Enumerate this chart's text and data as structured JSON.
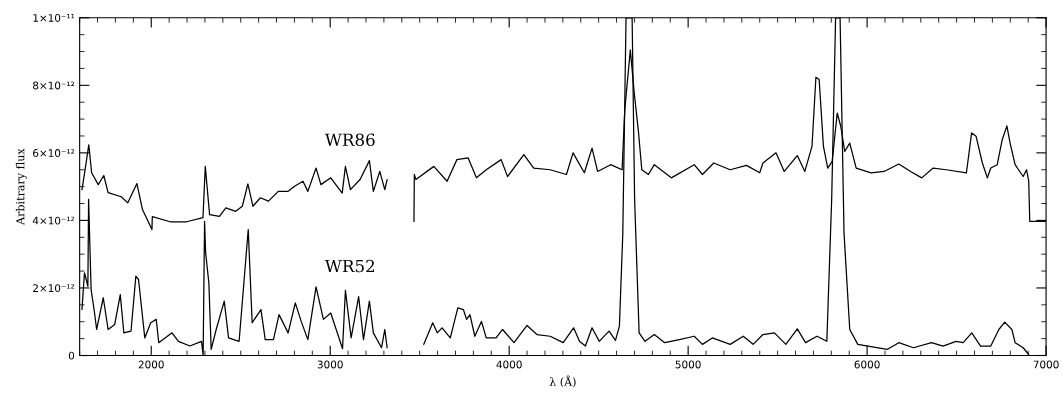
{
  "chart_data": {
    "type": "line",
    "xlabel": "λ (Å)",
    "ylabel": "Arbitrary flux",
    "xlim": [
      1600,
      7000
    ],
    "xticks": [
      2000,
      3000,
      4000,
      5000,
      6000,
      7000
    ],
    "ylim": [
      0,
      1e-11
    ],
    "yticks": [
      {
        "value": 0,
        "label": "0"
      },
      {
        "value": 2e-12,
        "label": "2×10⁻¹²"
      },
      {
        "value": 4e-12,
        "label": "4×10⁻¹²"
      },
      {
        "value": 6e-12,
        "label": "6×10⁻¹²"
      },
      {
        "value": 8e-12,
        "label": "8×10⁻¹²"
      },
      {
        "value": 1e-11,
        "label": "1×10⁻¹¹"
      }
    ],
    "grid": false,
    "marker": "none",
    "line_style": "solid",
    "series": [
      {
        "name": "WR86",
        "color": "#000000",
        "x": [
          1613,
          1629,
          1651,
          1667,
          1704,
          1735,
          1759,
          1832,
          1869,
          1920,
          1951,
          2004,
          2006,
          2106,
          2198,
          2289,
          2302,
          2326,
          2381,
          2417,
          2472,
          2509,
          2540,
          2568,
          2610,
          2655,
          2710,
          2765,
          2801,
          2848,
          2875,
          2921,
          2948,
          3003,
          3067,
          3085,
          3113,
          3167,
          3219,
          3241,
          3277,
          3305,
          3318,
          3400,
          3468,
          3470,
          3479,
          3579,
          3653,
          3708,
          3771,
          3817,
          3872,
          3955,
          3991,
          4082,
          4137,
          4229,
          4320,
          4357,
          4420,
          4463,
          4494,
          4567,
          4631,
          4646,
          4677,
          4699,
          4723,
          4741,
          4778,
          4811,
          4906,
          5034,
          5080,
          5143,
          5235,
          5326,
          5400,
          5418,
          5491,
          5537,
          5610,
          5652,
          5692,
          5714,
          5732,
          5756,
          5780,
          5805,
          5833,
          5853,
          5875,
          5903,
          5939,
          6022,
          6095,
          6177,
          6243,
          6305,
          6369,
          6443,
          6555,
          6584,
          6609,
          6644,
          6672,
          6691,
          6727,
          6755,
          6781,
          6799,
          6827,
          6872,
          6891,
          6903,
          6909,
          6997
        ],
        "values": [
          4.91e-12,
          5.45e-12,
          6.24e-12,
          5.41e-12,
          5.06e-12,
          5.33e-12,
          4.82e-12,
          4.7e-12,
          4.52e-12,
          5.09e-12,
          4.32e-12,
          3.73e-12,
          4.11e-12,
          3.96e-12,
          3.96e-12,
          4.08e-12,
          5.6e-12,
          4.17e-12,
          4.12e-12,
          4.37e-12,
          4.27e-12,
          4.42e-12,
          5.08e-12,
          4.42e-12,
          4.67e-12,
          4.57e-12,
          4.86e-12,
          4.86e-12,
          5.01e-12,
          5.16e-12,
          4.86e-12,
          5.55e-12,
          5.06e-12,
          5.26e-12,
          4.81e-12,
          5.6e-12,
          4.91e-12,
          5.21e-12,
          5.77e-12,
          4.86e-12,
          5.45e-12,
          4.91e-12,
          5.21e-12,
          null,
          3.97e-12,
          5.36e-12,
          5.21e-12,
          5.6e-12,
          5.16e-12,
          5.8e-12,
          5.85e-12,
          5.26e-12,
          5.5e-12,
          5.8e-12,
          5.3e-12,
          5.95e-12,
          5.55e-12,
          5.5e-12,
          5.36e-12,
          6e-12,
          5.41e-12,
          6.14e-12,
          5.45e-12,
          5.65e-12,
          5.5e-12,
          7.28e-12,
          9.05e-12,
          7.77e-12,
          6.59e-12,
          5.5e-12,
          5.36e-12,
          5.65e-12,
          5.26e-12,
          5.65e-12,
          5.36e-12,
          5.7e-12,
          5.5e-12,
          5.63e-12,
          5.41e-12,
          5.7e-12,
          6e-12,
          5.45e-12,
          5.92e-12,
          5.45e-12,
          6.19e-12,
          8.24e-12,
          8.17e-12,
          6.19e-12,
          5.55e-12,
          5.75e-12,
          7.18e-12,
          6.78e-12,
          6.04e-12,
          6.29e-12,
          5.55e-12,
          5.41e-12,
          5.45e-12,
          5.67e-12,
          5.45e-12,
          5.26e-12,
          5.55e-12,
          5.5e-12,
          5.41e-12,
          6.59e-12,
          6.49e-12,
          5.7e-12,
          5.26e-12,
          5.55e-12,
          5.65e-12,
          6.39e-12,
          6.8e-12,
          6.29e-12,
          5.65e-12,
          5.3e-12,
          5.5e-12,
          5.16e-12,
          3.97e-12,
          3.97e-12
        ]
      },
      {
        "name": "WR52",
        "color": "#000000",
        "x": [
          1613,
          1627,
          1646,
          1650,
          1664,
          1682,
          1695,
          1732,
          1759,
          1796,
          1827,
          1847,
          1887,
          1914,
          1929,
          1964,
          1997,
          2028,
          2042,
          2116,
          2152,
          2216,
          2281,
          2290,
          2298,
          2304,
          2322,
          2335,
          2363,
          2408,
          2432,
          2491,
          2542,
          2564,
          2613,
          2637,
          2683,
          2714,
          2765,
          2805,
          2838,
          2875,
          2921,
          2962,
          3003,
          3069,
          3085,
          3117,
          3159,
          3186,
          3219,
          3241,
          3287,
          3305,
          3318,
          3420,
          3523,
          3573,
          3598,
          3625,
          3671,
          3713,
          3744,
          3762,
          3781,
          3808,
          3845,
          3872,
          3927,
          3963,
          4027,
          4100,
          4155,
          4229,
          4302,
          4360,
          4393,
          4426,
          4463,
          4503,
          4558,
          4594,
          4616,
          4635,
          4653,
          4687,
          4701,
          4726,
          4759,
          4811,
          4869,
          4951,
          5034,
          5080,
          5135,
          5235,
          5308,
          5363,
          5418,
          5482,
          5546,
          5610,
          5656,
          5720,
          5775,
          5802,
          5824,
          5849,
          5871,
          5903,
          5948,
          6112,
          6177,
          6259,
          6360,
          6424,
          6497,
          6537,
          6585,
          6634,
          6691,
          6736,
          6769,
          6809,
          6827,
          6872,
          6903
        ],
        "values": [
          1.36e-12,
          2.45e-12,
          2.05e-12,
          4.62e-12,
          1.95e-12,
          1.31e-12,
          7.7e-13,
          1.71e-12,
          7.7e-13,
          9.2e-13,
          1.8e-12,
          6.7e-13,
          7.2e-13,
          2.35e-12,
          2.25e-12,
          5.2e-13,
          9.7e-13,
          1.07e-12,
          3.8e-13,
          6.7e-13,
          4.2e-13,
          2.8e-13,
          4.2e-13,
          0,
          3.97e-12,
          3.04e-12,
          2.15e-12,
          1.8e-13,
          7.7e-13,
          1.61e-12,
          5.2e-13,
          4.2e-13,
          3.73e-12,
          9.7e-13,
          1.36e-12,
          4.7e-13,
          4.7e-13,
          1.21e-12,
          6.7e-13,
          1.56e-12,
          1.01e-12,
          4.7e-13,
          2.03e-12,
          1.07e-12,
          1.26e-12,
          2e-13,
          1.93e-12,
          5.2e-13,
          1.74e-12,
          4.7e-13,
          1.61e-12,
          6.7e-13,
          2.3e-13,
          7.7e-13,
          2.3e-13,
          null,
          3.3e-13,
          9.7e-13,
          6.7e-13,
          8.2e-13,
          5.2e-13,
          1.41e-12,
          1.36e-12,
          1.07e-12,
          1.21e-12,
          5.7e-13,
          1.01e-12,
          5.2e-13,
          5.2e-13,
          7.7e-13,
          3.8e-13,
          8.9e-13,
          6.2e-13,
          5.7e-13,
          3.8e-13,
          8.2e-13,
          4.2e-13,
          2.8e-13,
          8.2e-13,
          4.2e-13,
          7.2e-13,
          4.5e-13,
          8.7e-13,
          3.63e-12,
          1e-11,
          1e-11,
          4.62e-12,
          6.7e-13,
          4.2e-13,
          6.2e-13,
          3.8e-13,
          4.7e-13,
          5.7e-13,
          3.3e-13,
          5.2e-13,
          3.3e-13,
          5.7e-13,
          3.3e-13,
          6.2e-13,
          6.7e-13,
          3.3e-13,
          7.9e-13,
          3.8e-13,
          5.7e-13,
          4.2e-13,
          4.62e-12,
          1e-11,
          1e-11,
          3.63e-12,
          7.7e-13,
          3.3e-13,
          1.8e-13,
          3.8e-13,
          2.3e-13,
          3.8e-13,
          2.8e-13,
          4.2e-13,
          3.8e-13,
          6.7e-13,
          2.8e-13,
          2.8e-13,
          7.7e-13,
          9.9e-13,
          7.7e-13,
          3.8e-13,
          2.3e-13,
          3e-14
        ]
      }
    ]
  }
}
